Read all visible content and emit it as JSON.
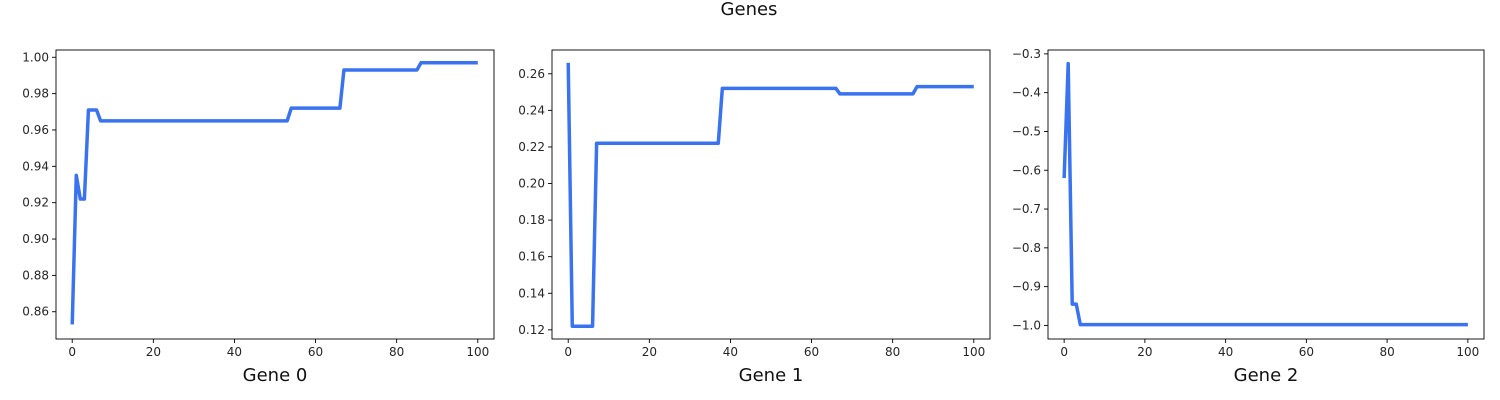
{
  "figure": {
    "title": "Genes"
  },
  "style": {
    "line_color": "#3a73f0",
    "axis_color": "#000000",
    "background": "#ffffff"
  },
  "chart_data": [
    {
      "type": "line",
      "title": "",
      "xlabel": "Gene 0",
      "ylabel": "",
      "grid": false,
      "xlim": [
        -4,
        104
      ],
      "ylim": [
        0.845,
        1.004
      ],
      "xticks": [
        0,
        20,
        40,
        60,
        80,
        100
      ],
      "yticks": [
        0.86,
        0.88,
        0.9,
        0.92,
        0.94,
        0.96,
        0.98,
        1.0
      ],
      "ytick_labels": [
        "0.86",
        "0.88",
        "0.90",
        "0.92",
        "0.94",
        "0.96",
        "0.98",
        "1.00"
      ],
      "x": [
        0,
        1,
        2,
        3,
        4,
        5,
        6,
        7,
        53,
        54,
        66,
        67,
        85,
        86,
        100
      ],
      "values": [
        0.853,
        0.935,
        0.922,
        0.922,
        0.971,
        0.971,
        0.971,
        0.965,
        0.965,
        0.972,
        0.972,
        0.993,
        0.993,
        0.997,
        0.997
      ]
    },
    {
      "type": "line",
      "title": "",
      "xlabel": "Gene 1",
      "ylabel": "",
      "grid": false,
      "xlim": [
        -4,
        104
      ],
      "ylim": [
        0.115,
        0.273
      ],
      "xticks": [
        0,
        20,
        40,
        60,
        80,
        100
      ],
      "yticks": [
        0.12,
        0.14,
        0.16,
        0.18,
        0.2,
        0.22,
        0.24,
        0.26
      ],
      "ytick_labels": [
        "0.12",
        "0.14",
        "0.16",
        "0.18",
        "0.20",
        "0.22",
        "0.24",
        "0.26"
      ],
      "x": [
        0,
        1,
        6,
        7,
        37,
        38,
        66,
        67,
        85,
        86,
        100
      ],
      "values": [
        0.266,
        0.122,
        0.122,
        0.222,
        0.222,
        0.252,
        0.252,
        0.249,
        0.249,
        0.253,
        0.253
      ]
    },
    {
      "type": "line",
      "title": "",
      "xlabel": "Gene 2",
      "ylabel": "",
      "grid": false,
      "xlim": [
        -4,
        104
      ],
      "ylim": [
        -1.035,
        -0.29
      ],
      "xticks": [
        0,
        20,
        40,
        60,
        80,
        100
      ],
      "yticks": [
        -1.0,
        -0.9,
        -0.8,
        -0.7,
        -0.6,
        -0.5,
        -0.4,
        -0.3
      ],
      "ytick_labels": [
        "−1.0",
        "−0.9",
        "−0.8",
        "−0.7",
        "−0.6",
        "−0.5",
        "−0.4",
        "−0.3"
      ],
      "x": [
        0,
        1,
        2,
        3,
        4,
        100
      ],
      "values": [
        -0.62,
        -0.325,
        -0.945,
        -0.945,
        -0.998,
        -0.998
      ]
    }
  ]
}
